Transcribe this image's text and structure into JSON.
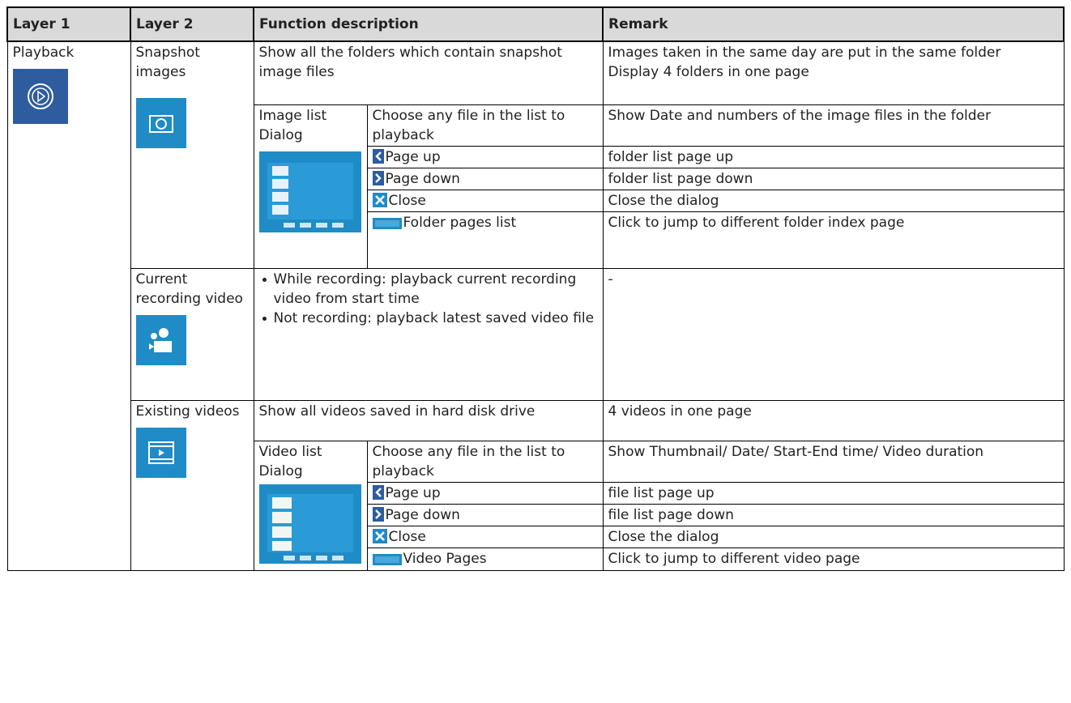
{
  "header": {
    "cells": [
      "Layer 1",
      "Layer 2",
      "Function description",
      "Remark"
    ]
  },
  "layer1": "Playback",
  "sections": [
    {
      "layer2": "Snapshot images",
      "function": "Show all the folders which contain snapshot image files",
      "remark": [
        "Images taken in the same day are put in the same folder",
        "Display 4 folders in one page"
      ],
      "dialog": {
        "name": "Image list Dialog",
        "items": [
          {
            "function": "Choose any file in the list to playback",
            "remark": "Show Date and numbers of the image files in the folder"
          },
          {
            "function": "Page up",
            "remark": "folder list page up"
          },
          {
            "function": "Page down",
            "remark": "folder list page down"
          },
          {
            "function": "Close",
            "remark": "Close the dialog"
          },
          {
            "function": "Folder pages list",
            "remark": "Click to jump to different folder index page"
          }
        ]
      }
    },
    {
      "layer2": "Current recording video",
      "bullets": [
        "While recording: playback current recording video from start time",
        "Not recording: playback latest saved video file"
      ],
      "remark": [
        "-"
      ]
    },
    {
      "layer2": "Existing videos",
      "function": "Show all videos saved in hard disk drive",
      "remark": [
        "4 videos in one page"
      ],
      "dialog": {
        "name": "Video list Dialog",
        "items": [
          {
            "function": "Choose any file in the list to playback",
            "remark": "Show Thumbnail/ Date/ Start-End time/ Video duration"
          },
          {
            "function": "Page up",
            "remark": "file list page up"
          },
          {
            "function": "Page down",
            "remark": "file list page down"
          },
          {
            "function": "Close",
            "remark": "Close the dialog"
          },
          {
            "function": "Video Pages",
            "remark": "Click to jump to different video page"
          }
        ]
      }
    }
  ]
}
